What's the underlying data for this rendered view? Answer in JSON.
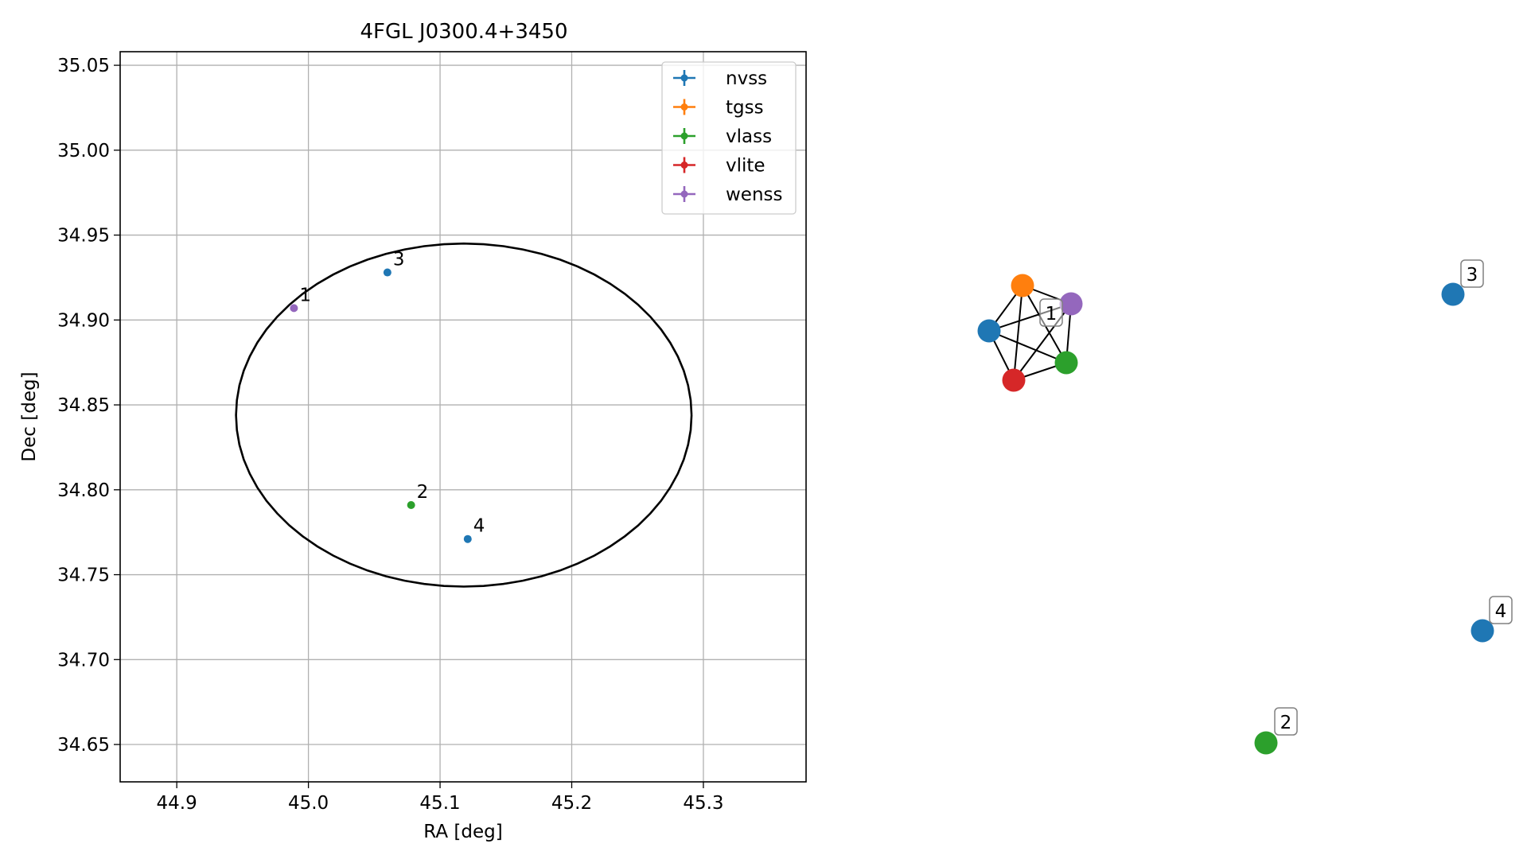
{
  "chart_data": [
    {
      "type": "scatter",
      "title": "4FGL J0300.4+3450",
      "xlabel": "RA [deg]",
      "ylabel": "Dec [deg]",
      "xlim": [
        44.857,
        45.378
      ],
      "ylim": [
        34.628,
        35.058
      ],
      "xticks": [
        "44.9",
        "45.0",
        "45.1",
        "45.2",
        "45.3"
      ],
      "xtick_values": [
        44.9,
        45.0,
        45.1,
        45.2,
        45.3
      ],
      "yticks": [
        "34.65",
        "34.70",
        "34.75",
        "34.80",
        "34.85",
        "34.90",
        "34.95",
        "35.00",
        "35.05"
      ],
      "ytick_values": [
        34.65,
        34.7,
        34.75,
        34.8,
        34.85,
        34.9,
        34.95,
        35.0,
        35.05
      ],
      "grid": true,
      "legend_position": "top-right",
      "series": [
        {
          "name": "nvss",
          "color": "#1f77b4",
          "points": [
            {
              "x": 45.06,
              "y": 34.928,
              "label": "3"
            },
            {
              "x": 45.121,
              "y": 34.771,
              "label": "4"
            }
          ]
        },
        {
          "name": "tgss",
          "color": "#ff7f0e",
          "points": []
        },
        {
          "name": "vlass",
          "color": "#2ca02c",
          "points": [
            {
              "x": 45.078,
              "y": 34.791,
              "label": "2"
            }
          ]
        },
        {
          "name": "vlite",
          "color": "#d62728",
          "points": []
        },
        {
          "name": "wenss",
          "color": "#9467bd",
          "points": [
            {
              "x": 44.989,
              "y": 34.907,
              "label": "1"
            }
          ]
        }
      ],
      "ellipse": {
        "center_x": 45.118,
        "center_y": 34.844,
        "semi_axis_ra": 0.173,
        "semi_axis_dec": 0.101,
        "color": "#000000"
      }
    },
    {
      "type": "network",
      "nodes": [
        {
          "id": "nvss-a",
          "color": "#1f77b4"
        },
        {
          "id": "tgss",
          "color": "#ff7f0e"
        },
        {
          "id": "wenss",
          "color": "#9467bd"
        },
        {
          "id": "vlass-a",
          "color": "#2ca02c"
        },
        {
          "id": "vlite",
          "color": "#d62728"
        },
        {
          "id": "nvss-3",
          "color": "#1f77b4"
        },
        {
          "id": "nvss-4",
          "color": "#1f77b4"
        },
        {
          "id": "vlass-2",
          "color": "#2ca02c"
        }
      ],
      "edges": [
        [
          "nvss-a",
          "tgss"
        ],
        [
          "nvss-a",
          "wenss"
        ],
        [
          "nvss-a",
          "vlass-a"
        ],
        [
          "nvss-a",
          "vlite"
        ],
        [
          "tgss",
          "wenss"
        ],
        [
          "tgss",
          "vlass-a"
        ],
        [
          "tgss",
          "vlite"
        ],
        [
          "wenss",
          "vlass-a"
        ],
        [
          "wenss",
          "vlite"
        ],
        [
          "vlass-a",
          "vlite"
        ]
      ],
      "cluster_labels": [
        {
          "text": "1"
        },
        {
          "text": "3"
        },
        {
          "text": "4"
        },
        {
          "text": "2"
        }
      ]
    }
  ]
}
